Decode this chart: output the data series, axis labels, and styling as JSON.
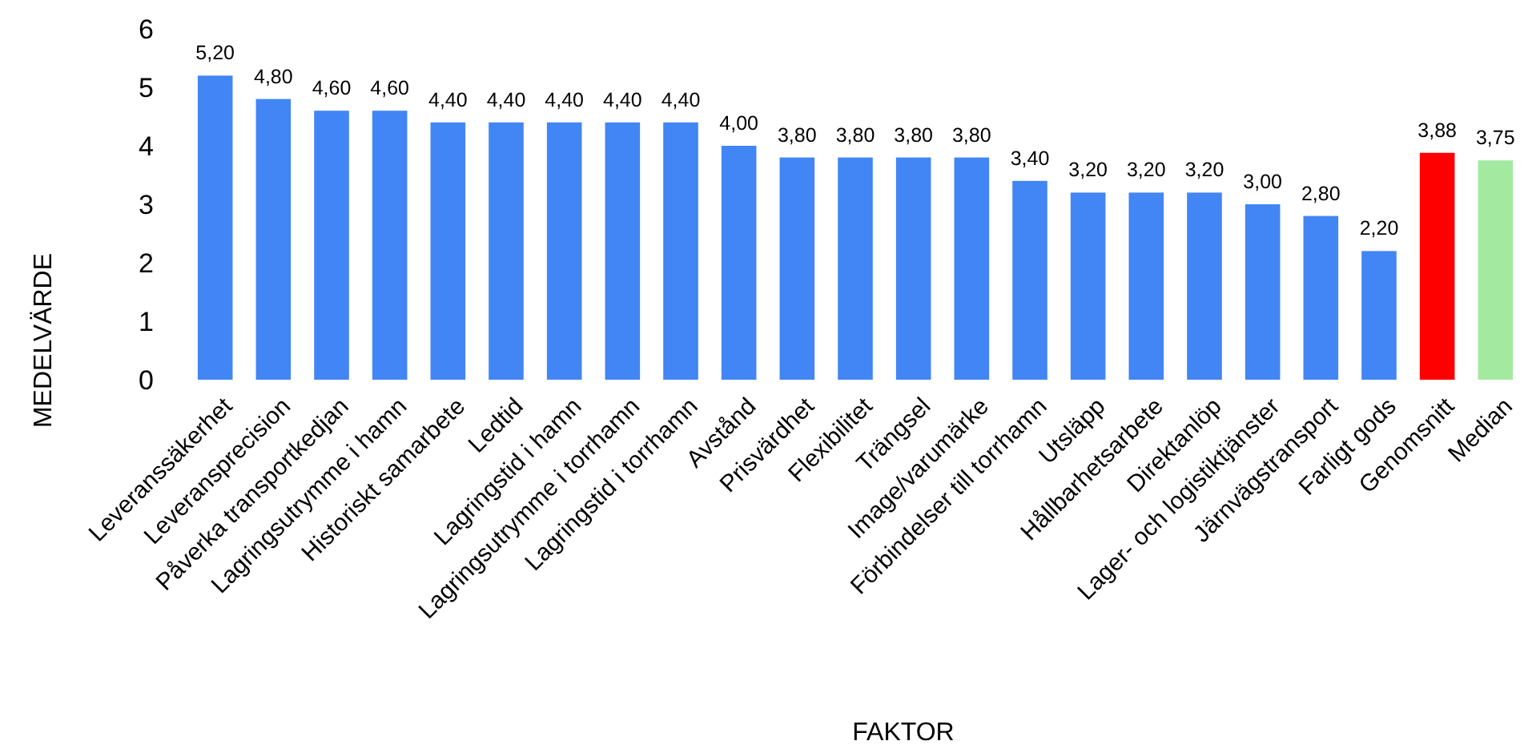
{
  "chart_data": {
    "type": "bar",
    "xlabel": "FAKTOR",
    "ylabel": "MEDELVÄRDE",
    "categories": [
      "Leveranssäkerhet",
      "Leveransprecision",
      "Påverka transportkedjan",
      "Lagringsutrymme i hamn",
      "Historiskt samarbete",
      "Ledtid",
      "Lagringstid i hamn",
      "Lagringsutrymme i torrhamn",
      "Lagringstid i torrhamn",
      "Avstånd",
      "Prisvärdhet",
      "Flexibilitet",
      "Trängsel",
      "Image/varumärke",
      "Förbindelser till torrhamn",
      "Utsläpp",
      "Hållbarhetsarbete",
      "Direktanlöp",
      "Lager- och logistiktjänster",
      "Järnvägstransport",
      "Farligt gods",
      "Genomsnitt",
      "Median"
    ],
    "values": [
      5.2,
      4.8,
      4.6,
      4.6,
      4.4,
      4.4,
      4.4,
      4.4,
      4.4,
      4.0,
      3.8,
      3.8,
      3.8,
      3.8,
      3.4,
      3.2,
      3.2,
      3.2,
      3.0,
      2.8,
      2.2,
      3.88,
      3.75
    ],
    "value_labels": [
      "5,20",
      "4,80",
      "4,60",
      "4,60",
      "4,40",
      "4,40",
      "4,40",
      "4,40",
      "4,40",
      "4,00",
      "3,80",
      "3,80",
      "3,80",
      "3,80",
      "3,40",
      "3,20",
      "3,20",
      "3,20",
      "3,00",
      "2,80",
      "2,20",
      "3,88",
      "3,75"
    ],
    "colors": [
      "#4285f4",
      "#4285f4",
      "#4285f4",
      "#4285f4",
      "#4285f4",
      "#4285f4",
      "#4285f4",
      "#4285f4",
      "#4285f4",
      "#4285f4",
      "#4285f4",
      "#4285f4",
      "#4285f4",
      "#4285f4",
      "#4285f4",
      "#4285f4",
      "#4285f4",
      "#4285f4",
      "#4285f4",
      "#4285f4",
      "#4285f4",
      "#ff0000",
      "#a4e9a0"
    ],
    "ylim": [
      0,
      6
    ],
    "yticks": [
      0,
      1,
      2,
      3,
      4,
      5,
      6
    ],
    "grid": false
  }
}
